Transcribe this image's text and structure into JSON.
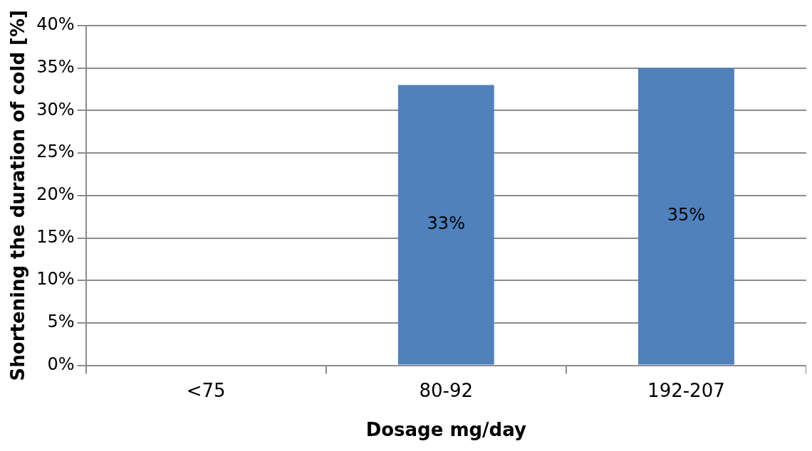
{
  "chart_data": {
    "type": "bar",
    "xlabel": "Dosage mg/day",
    "ylabel": "Shortening the duration of cold [%]",
    "categories": [
      "<75",
      "80-92",
      "192-207"
    ],
    "values": [
      null,
      33,
      35
    ],
    "value_labels": [
      null,
      "33%",
      "35%"
    ],
    "color": "#4f81bd",
    "ylim": [
      0,
      40
    ],
    "yticks": [
      {
        "value": 0,
        "label": "0%"
      },
      {
        "value": 5,
        "label": "5%"
      },
      {
        "value": 10,
        "label": "10%"
      },
      {
        "value": 15,
        "label": "15%"
      },
      {
        "value": 20,
        "label": "20%"
      },
      {
        "value": 25,
        "label": "25%"
      },
      {
        "value": 30,
        "label": "30%"
      },
      {
        "value": 35,
        "label": "35%"
      },
      {
        "value": 40,
        "label": "40%"
      }
    ],
    "grid": "y"
  }
}
